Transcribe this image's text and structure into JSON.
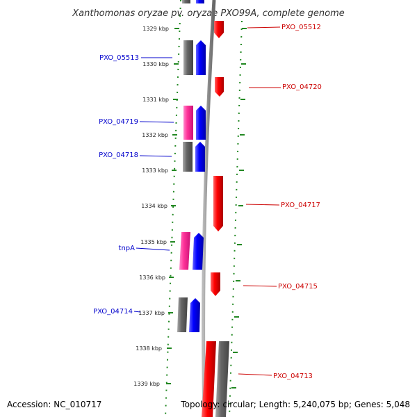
{
  "header": {
    "title": "Xanthomonas oryzae pv. oryzae PXO99A, complete genome"
  },
  "footer": {
    "accession": "Accession: NC_010717",
    "summary": "Topology: circular; Length: 5,240,075 bp; Genes: 5,048"
  },
  "scale": {
    "ticks": [
      {
        "label": "1329 kbp"
      },
      {
        "label": "1330 kbp"
      },
      {
        "label": "1331 kbp"
      },
      {
        "label": "1332 kbp"
      },
      {
        "label": "1333 kbp"
      },
      {
        "label": "1334 kbp"
      },
      {
        "label": "1335 kbp"
      },
      {
        "label": "1336 kbp"
      },
      {
        "label": "1337 kbp"
      },
      {
        "label": "1338 kbp"
      },
      {
        "label": "1339 kbp"
      }
    ]
  },
  "genes_reverse_strand": [
    {
      "name": "PXO_05513"
    },
    {
      "name": "PXO_04719"
    },
    {
      "name": "PXO_04718"
    },
    {
      "name": "tnpA"
    },
    {
      "name": "PXO_04714"
    }
  ],
  "genes_forward_strand": [
    {
      "name": "PXO_05512"
    },
    {
      "name": "PXO_04720"
    },
    {
      "name": "PXO_04717"
    },
    {
      "name": "PXO_04715"
    },
    {
      "name": "PXO_04713"
    }
  ],
  "colors": {
    "cds": "#ff0000",
    "cds_reverse": "#0000ff",
    "gene": "#666666",
    "mobile_element": "#ff3399",
    "backbone": "#999999",
    "dotted_track": "#228822",
    "label_left": "#0000cc",
    "label_right": "#cc0000"
  }
}
